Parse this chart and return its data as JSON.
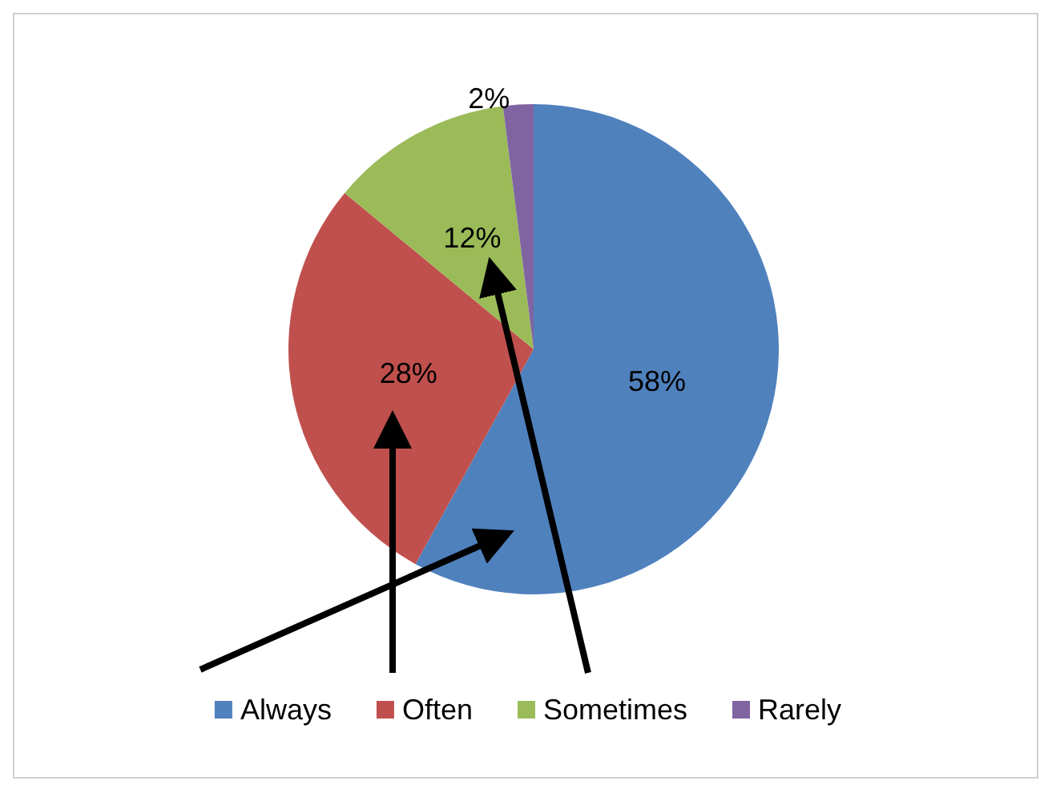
{
  "chart_data": {
    "type": "pie",
    "categories": [
      "Always",
      "Often",
      "Sometimes",
      "Rarely"
    ],
    "values": [
      58,
      28,
      12,
      2
    ],
    "colors": [
      "#4f81bd",
      "#c0504d",
      "#9bbb59",
      "#8064a2"
    ],
    "value_labels": [
      "58%",
      "28%",
      "12%",
      "2%"
    ],
    "legend": "bottom"
  }
}
